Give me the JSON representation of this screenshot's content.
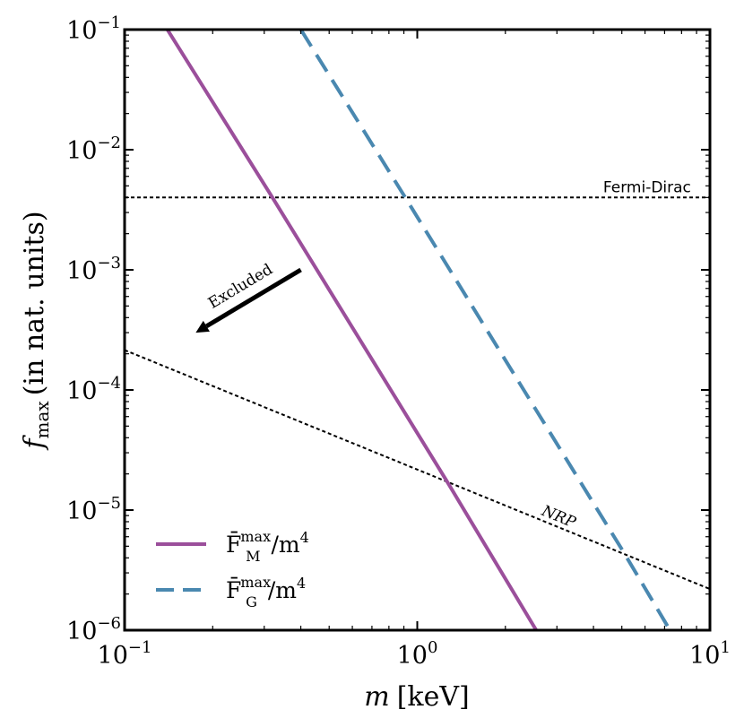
{
  "chart_data": {
    "type": "line",
    "xscale": "log",
    "yscale": "log",
    "xlim": [
      0.1,
      10
    ],
    "ylim": [
      1e-06,
      0.1
    ],
    "xlabel": "m [keV]",
    "ylabel": "f_max (in nat. units)",
    "xlabel_parts": {
      "var": "m",
      "unit": "[keV]"
    },
    "ylabel_parts": {
      "var": "f",
      "sub": "max",
      "rest": "(in nat. units)"
    },
    "x_ticks": [
      {
        "value": 0.1,
        "base": "10",
        "exp": "−1"
      },
      {
        "value": 1,
        "base": "10",
        "exp": "0"
      },
      {
        "value": 10,
        "base": "10",
        "exp": "1"
      }
    ],
    "y_ticks": [
      {
        "value": 0.1,
        "base": "10",
        "exp": "−1"
      },
      {
        "value": 0.01,
        "base": "10",
        "exp": "−2"
      },
      {
        "value": 0.001,
        "base": "10",
        "exp": "−3"
      },
      {
        "value": 0.0001,
        "base": "10",
        "exp": "−4"
      },
      {
        "value": 1e-05,
        "base": "10",
        "exp": "−5"
      },
      {
        "value": 1e-06,
        "base": "10",
        "exp": "−6"
      }
    ],
    "series": [
      {
        "name": "F_M^max / m^4",
        "legend": {
          "F": "F̄",
          "sub": "M",
          "sup": "max",
          "rest": "/m",
          "pow": "4"
        },
        "style": "solid",
        "color": "#9b4f9b",
        "x": [
          0.14,
          0.32,
          1.26,
          2.55
        ],
        "y": [
          0.1,
          0.004,
          1.75e-05,
          1e-06
        ]
      },
      {
        "name": "F_G^max / m^4",
        "legend": {
          "F": "F̄",
          "sub": "G",
          "sup": "max",
          "rest": "/m",
          "pow": "4"
        },
        "style": "dashed",
        "color": "#4a88b0",
        "x": [
          0.4,
          0.91,
          5.06,
          7.3
        ],
        "y": [
          0.1,
          0.004,
          4.5e-06,
          1e-06
        ]
      }
    ],
    "reference_lines": [
      {
        "name": "Fermi-Dirac",
        "label": "Fermi-Dirac",
        "style": "dotted",
        "color": "#000000",
        "x": [
          0.1,
          10
        ],
        "y": [
          0.004,
          0.004
        ]
      },
      {
        "name": "NRP",
        "label": "NRP",
        "style": "dotted",
        "color": "#000000",
        "x": [
          0.1,
          10
        ],
        "y": [
          0.000215,
          2.2e-06
        ]
      }
    ],
    "annotations": [
      {
        "text": "Excluded",
        "arrow_from": [
          0.4,
          0.001
        ],
        "arrow_to": [
          0.175,
          0.0003
        ]
      }
    ],
    "legend_position": "lower-left"
  }
}
